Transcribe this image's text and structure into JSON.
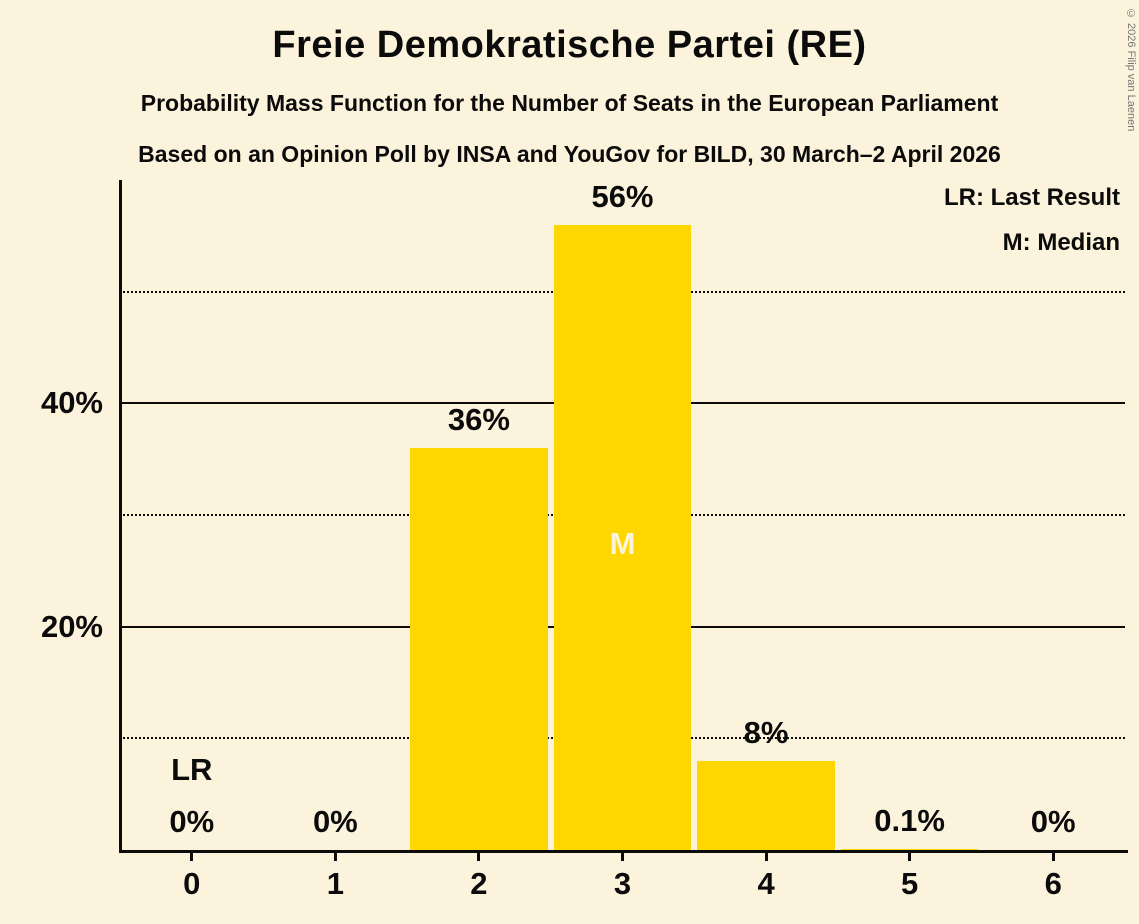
{
  "header": {
    "title": "Freie Demokratische Partei (RE)",
    "subtitle1": "Probability Mass Function for the Number of Seats in the European Parliament",
    "subtitle2": "Based on an Opinion Poll by INSA and YouGov for BILD, 30 March–2 April 2026"
  },
  "copyright": "© 2026 Filip van Laenen",
  "legend": {
    "last_result": "LR: Last Result",
    "median": "M: Median"
  },
  "chart_data": {
    "type": "bar",
    "title": "Freie Demokratische Partei (RE)",
    "categories": [
      "0",
      "1",
      "2",
      "3",
      "4",
      "5",
      "6"
    ],
    "values": [
      0,
      0,
      36,
      56,
      8,
      0.1,
      0
    ],
    "bar_labels": [
      "0%",
      "0%",
      "36%",
      "56%",
      "8%",
      "0.1%",
      "0%"
    ],
    "ylim": [
      0,
      60
    ],
    "gridlines": [
      {
        "value": 10,
        "style": "dotted",
        "label": ""
      },
      {
        "value": 20,
        "style": "solid",
        "label": "20%"
      },
      {
        "value": 30,
        "style": "dotted",
        "label": ""
      },
      {
        "value": 40,
        "style": "solid",
        "label": "40%"
      },
      {
        "value": 50,
        "style": "dotted",
        "label": ""
      }
    ],
    "median_category": "3",
    "median_marker": "M",
    "last_result_category": "0",
    "last_result_marker": "LR",
    "bar_color": "#FFD700",
    "background_color": "#FCF3DC",
    "text_color": "#0B0B0B",
    "legend_position": "top-right",
    "grid": "horizontal"
  }
}
